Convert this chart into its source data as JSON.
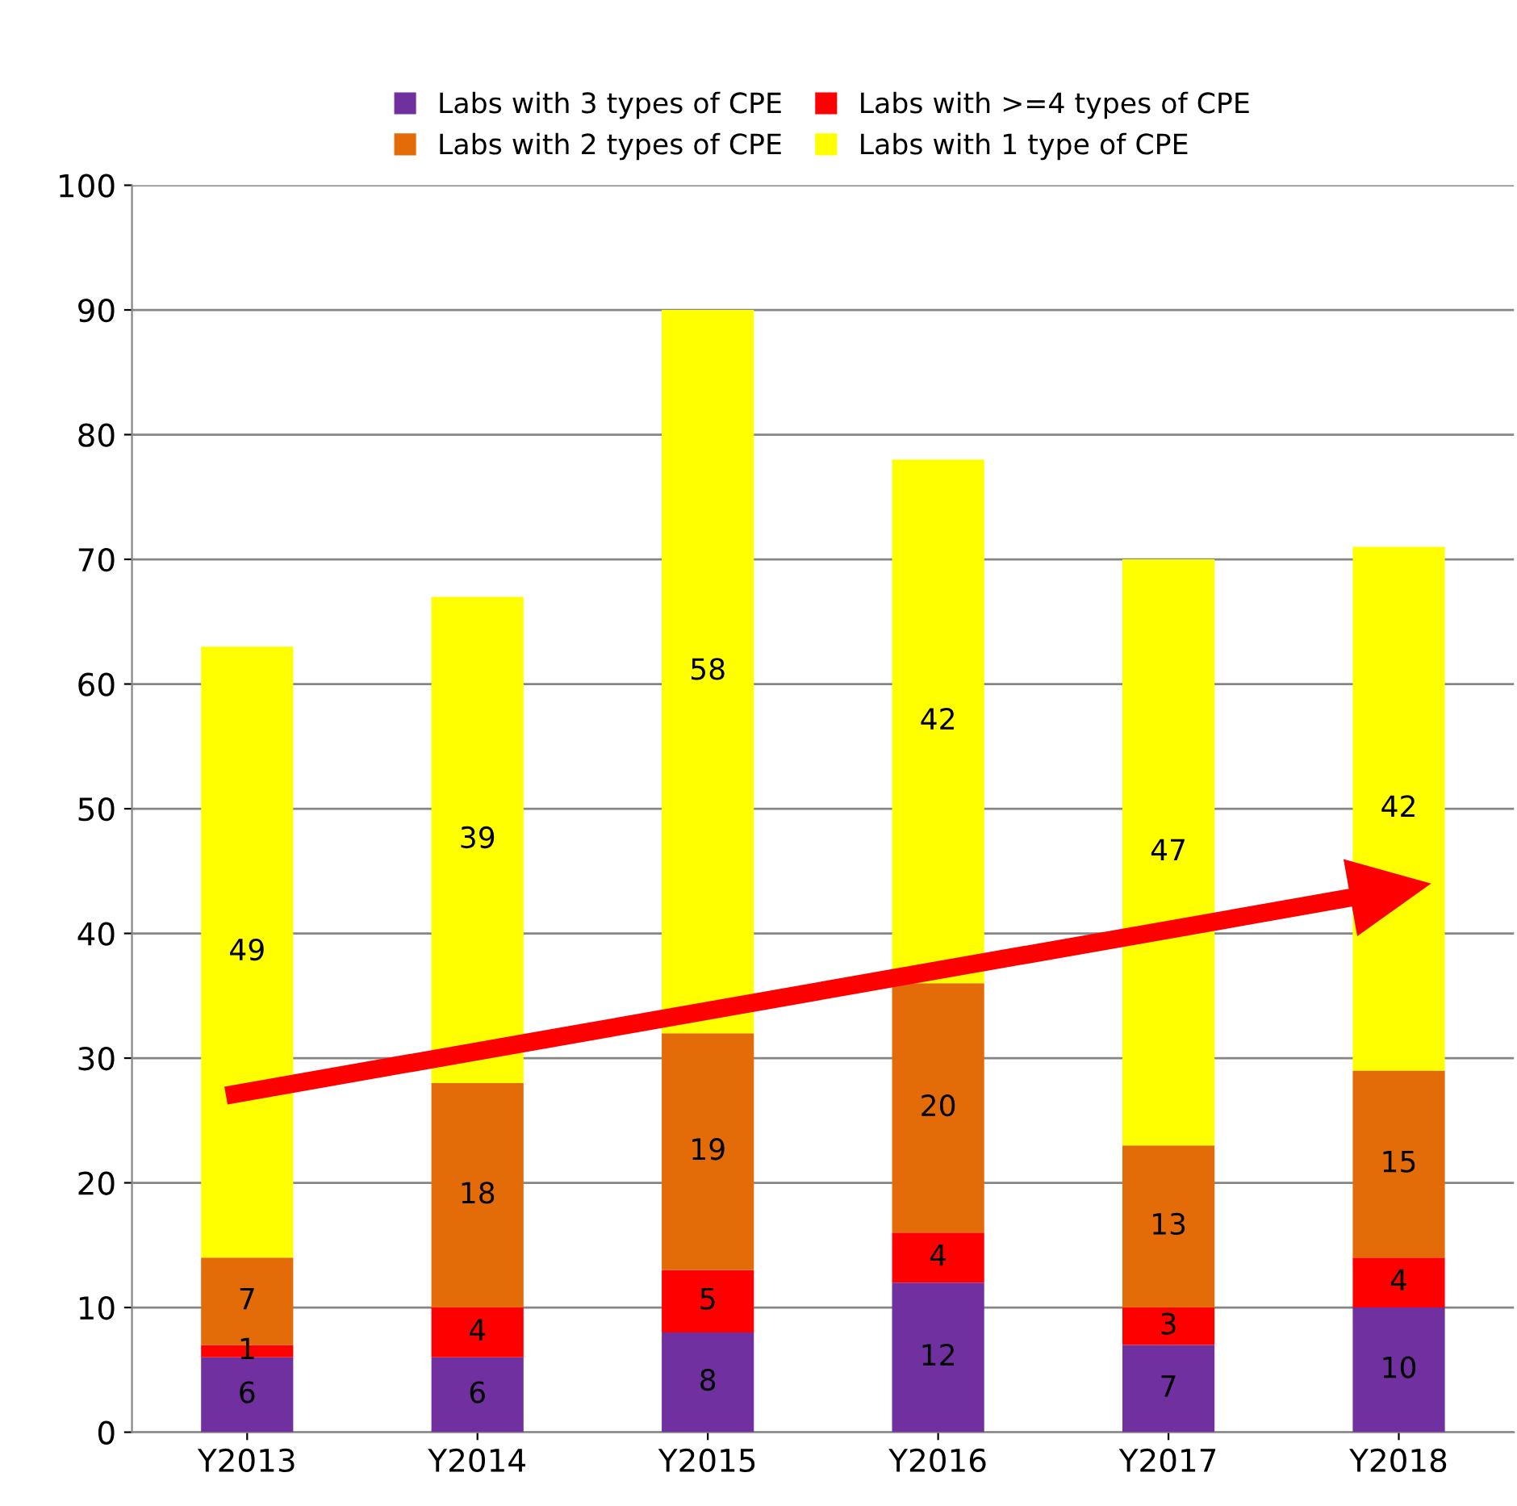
{
  "chart_data": {
    "type": "bar",
    "stacked": true,
    "categories": [
      "Y2013",
      "Y2014",
      "Y2015",
      "Y2016",
      "Y2017",
      "Y2018"
    ],
    "series": [
      {
        "name": "Labs with 3 types of CPE",
        "color": "#7030a0",
        "values": [
          6,
          6,
          8,
          12,
          7,
          10
        ]
      },
      {
        "name": "Labs with >=4 types of CPE",
        "color": "#ff0000",
        "values": [
          1,
          4,
          5,
          4,
          3,
          4
        ]
      },
      {
        "name": "Labs with 2 types of CPE",
        "color": "#e36c09",
        "values": [
          7,
          18,
          19,
          20,
          13,
          15
        ]
      },
      {
        "name": "Labs with 1 type of CPE",
        "color": "#ffff00",
        "values": [
          49,
          39,
          58,
          42,
          47,
          42
        ]
      }
    ],
    "ylim": [
      0,
      100
    ],
    "yticks": [
      0,
      10,
      20,
      30,
      40,
      50,
      60,
      70,
      80,
      90,
      100
    ],
    "grid": "y",
    "legend": "top",
    "data_labels": true
  }
}
